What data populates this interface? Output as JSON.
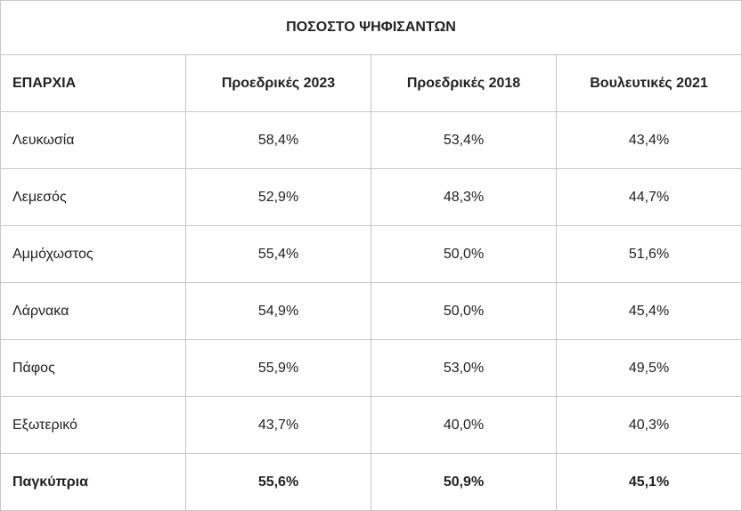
{
  "table": {
    "title": "ΠΟΣΟΣΤΟ ΨΗΦΙΣΑΝΤΩΝ",
    "headers": [
      "ΕΠΑΡΧΙΑ",
      "Προεδρικές 2023",
      "Προεδρικές 2018",
      "Βουλευτικές 2021"
    ],
    "rows": [
      [
        "Λευκωσία",
        "58,4%",
        "53,4%",
        "43,4%"
      ],
      [
        "Λεμεσός",
        "52,9%",
        "48,3%",
        "44,7%"
      ],
      [
        "Αμμόχωστος",
        "55,4%",
        "50,0%",
        "51,6%"
      ],
      [
        "Λάρνακα",
        "54,9%",
        "50,0%",
        "45,4%"
      ],
      [
        "Πάφος",
        "55,9%",
        "53,0%",
        "49,5%"
      ],
      [
        "Εξωτερικό",
        "43,7%",
        "40,0%",
        "40,3%"
      ]
    ],
    "total": [
      "Παγκύπρια",
      "55,6%",
      "50,9%",
      "45,1%"
    ]
  }
}
